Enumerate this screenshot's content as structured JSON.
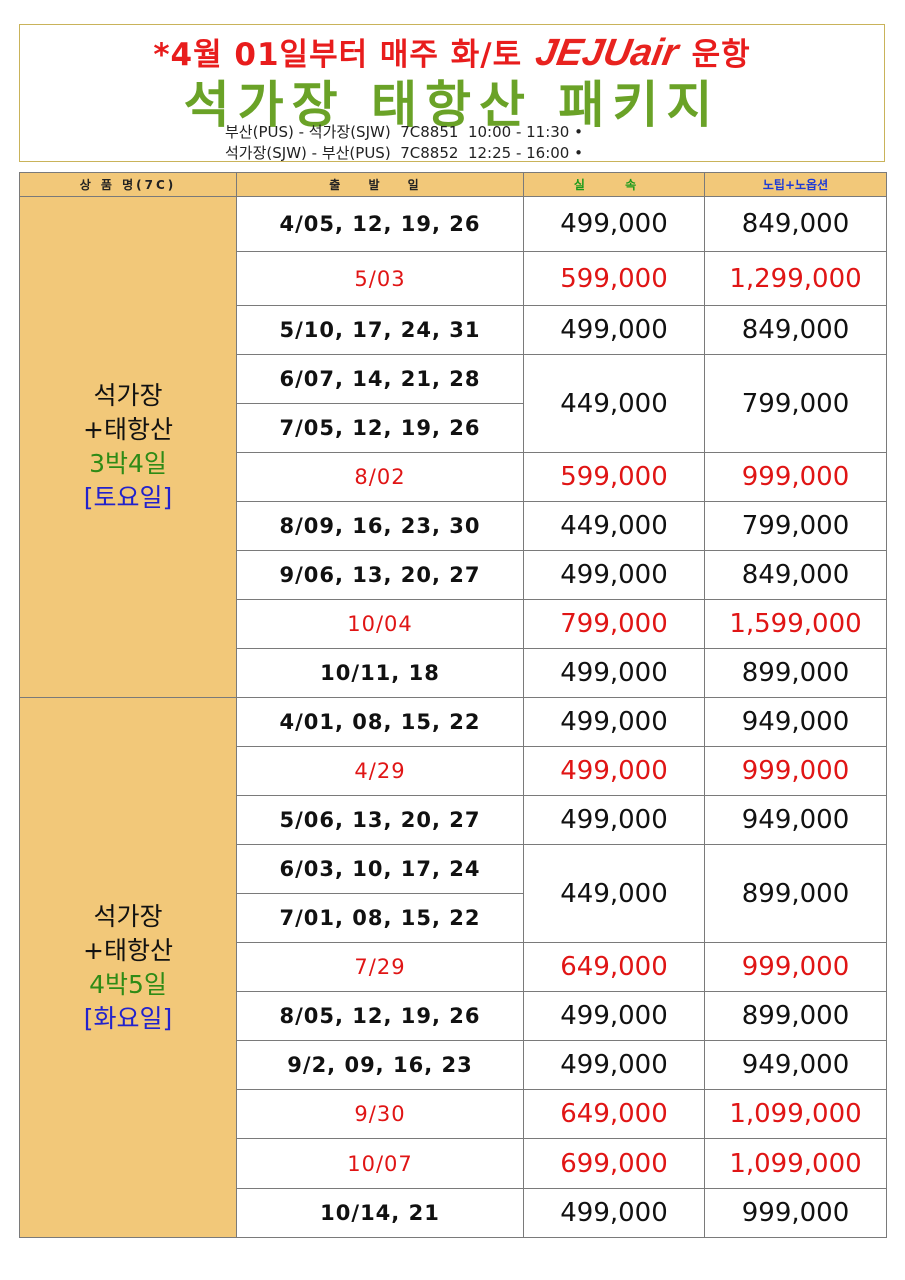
{
  "header": {
    "line1_prefix": "*4월 01일부터 매주 화/토",
    "airline_logo": "JEJUair",
    "line1_suffix": "운항",
    "title": "석가장 태항산 패키지",
    "flights": [
      "부산(PUS) - 석가장(SJW)  7C8851  10:00 - 11:30 •",
      "석가장(SJW) - 부산(PUS)  7C8852  12:25 - 16:00 •"
    ]
  },
  "table": {
    "columns": [
      "상 품 명(7C)",
      "출 발 일",
      "실 속",
      "노팁+노옵션"
    ],
    "groups": [
      {
        "name_line1": "석가장",
        "name_line2": "+태항산",
        "duration": "3박4일",
        "day": "[토요일]",
        "rows": [
          {
            "dates": "4/05, 12, 19, 26",
            "basic": "499,000",
            "premium": "849,000",
            "highlight": false
          },
          {
            "dates": "5/03",
            "basic": "599,000",
            "premium": "1,299,000",
            "highlight": true
          },
          {
            "dates": "5/10, 17, 24, 31",
            "basic": "499,000",
            "premium": "849,000",
            "highlight": false
          },
          {
            "dates": "6/07, 14, 21, 28",
            "basic": "449,000",
            "premium": "799,000",
            "highlight": false
          },
          {
            "dates": "7/05, 12, 19, 26",
            "basic": "",
            "premium": "",
            "highlight": false
          },
          {
            "dates": "8/02",
            "basic": "599,000",
            "premium": "999,000",
            "highlight": true
          },
          {
            "dates": "8/09, 16, 23, 30",
            "basic": "449,000",
            "premium": "799,000",
            "highlight": false
          },
          {
            "dates": "9/06, 13, 20, 27",
            "basic": "499,000",
            "premium": "849,000",
            "highlight": false
          },
          {
            "dates": "10/04",
            "basic": "799,000",
            "premium": "1,599,000",
            "highlight": true
          },
          {
            "dates": "10/11, 18",
            "basic": "499,000",
            "premium": "899,000",
            "highlight": false
          }
        ]
      },
      {
        "name_line1": "석가장",
        "name_line2": "+태항산",
        "duration": "4박5일",
        "day": "[화요일]",
        "rows": [
          {
            "dates": "4/01, 08, 15, 22",
            "basic": "499,000",
            "premium": "949,000",
            "highlight": false
          },
          {
            "dates": "4/29",
            "basic": "499,000",
            "premium": "999,000",
            "highlight": true
          },
          {
            "dates": "5/06, 13, 20, 27",
            "basic": "499,000",
            "premium": "949,000",
            "highlight": false
          },
          {
            "dates": "6/03, 10, 17, 24",
            "basic": "449,000",
            "premium": "899,000",
            "highlight": false
          },
          {
            "dates": "7/01, 08, 15, 22",
            "basic": "",
            "premium": "",
            "highlight": false
          },
          {
            "dates": "7/29",
            "basic": "649,000",
            "premium": "999,000",
            "highlight": true
          },
          {
            "dates": "8/05, 12, 19, 26",
            "basic": "499,000",
            "premium": "899,000",
            "highlight": false
          },
          {
            "dates": "9/2, 09, 16, 23",
            "basic": "499,000",
            "premium": "949,000",
            "highlight": false
          },
          {
            "dates": "9/30",
            "basic": "649,000",
            "premium": "1,099,000",
            "highlight": true
          },
          {
            "dates": "10/07",
            "basic": "699,000",
            "premium": "1,099,000",
            "highlight": true
          },
          {
            "dates": "10/14, 21",
            "basic": "499,000",
            "premium": "999,000",
            "highlight": false
          }
        ]
      }
    ]
  }
}
